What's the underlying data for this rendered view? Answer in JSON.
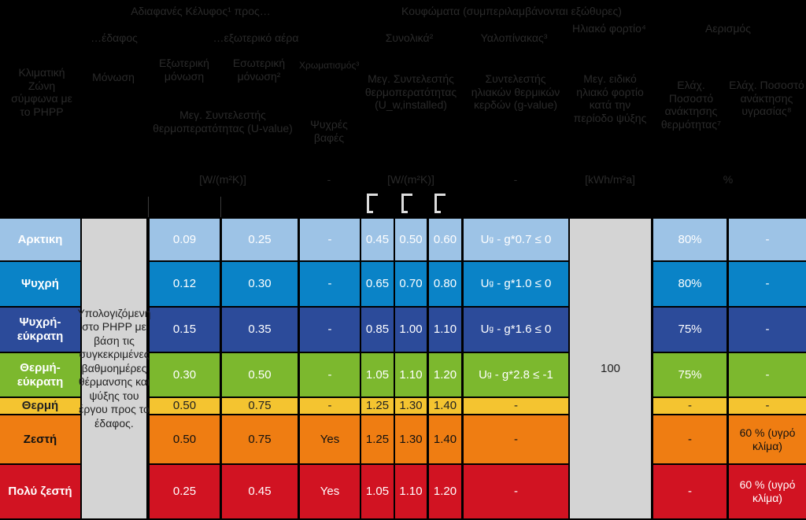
{
  "header": {
    "top_left": "Αδιαφανές Κέλυφος¹ προς…",
    "top_right": "Κουφώματα (συμπεριλαμβάνονται εξώθυρες)",
    "sub_ground": "…έδαφος",
    "sub_outside": "…εξωτερικό αέρα",
    "sub_total": "Συνολικά²",
    "sub_glazing": "Υαλοπίνακας³",
    "sub_solar": "Ηλιακό φορτίο⁴",
    "sub_vent": "Αερισμός",
    "zone_col": "Κλιματική Ζώνη σύμφωνα με το PHPP",
    "insulation": "Μόνωση",
    "ext_ins": "Εξωτερική μόνωση",
    "int_ins": "Εσωτερική μόνωση²",
    "paint": "Χρωματισμός³",
    "umax": "Μεγ. Συντελεστής θερμοπερατότητας (U-value)",
    "cool_colors": "Ψυχρές βαφές",
    "umax_w": "Μεγ. Συντελεστής θερμοπερατότητας (U_w,installed)",
    "glass_coef": "Συντελεστής ηλιακών θερμικών κερδών (g-value)",
    "solar_max": "Μεγ. ειδικό ηλιακό φορτίο κατά την περίοδο ψύξης",
    "heat_rec": "Ελάχ. Ποσοστό ανάκτησης θερμότητας⁷",
    "hum_rec": "Ελάχ. Ποσοστό ανάκτησης υγρασίας⁸",
    "unit_u": "[W/(m²K)]",
    "unit_dash": "-",
    "unit_uw": "[W/(m²K)]",
    "unit_dash2": "-",
    "unit_solar": "[kWh/m²a]",
    "unit_pct": "%"
  },
  "ground_text": "Υπολογιζόμενη στο PHPP με βάση τις συγκεκριμένες βαθμοημέρες θέρμανσης και ψύξης του έργου προς το έδαφος.",
  "solar_value": "100",
  "rows": [
    {
      "zone": "Αρκτικη",
      "ext": "0.09",
      "int": "0.25",
      "paint": "-",
      "w1": "0.45",
      "w2": "0.50",
      "w3": "0.60",
      "g": "U",
      "gsub": "g",
      "gtail": " - g*0.7 ≤ 0",
      "heat": "80%",
      "hum": "-"
    },
    {
      "zone": "Ψυχρή",
      "ext": "0.12",
      "int": "0.30",
      "paint": "-",
      "w1": "0.65",
      "w2": "0.70",
      "w3": "0.80",
      "g": "U",
      "gsub": "g",
      "gtail": " - g*1.0 ≤ 0",
      "heat": "80%",
      "hum": "-"
    },
    {
      "zone": "Ψυχρή-εύκρατη",
      "ext": "0.15",
      "int": "0.35",
      "paint": "-",
      "w1": "0.85",
      "w2": "1.00",
      "w3": "1.10",
      "g": "U",
      "gsub": "g",
      "gtail": " - g*1.6 ≤ 0",
      "heat": "75%",
      "hum": "-"
    },
    {
      "zone": "Θερμή-εύκρατη",
      "ext": "0.30",
      "int": "0.50",
      "paint": "-",
      "w1": "1.05",
      "w2": "1.10",
      "w3": "1.20",
      "g": "U",
      "gsub": "g",
      "gtail": " - g*2.8 ≤ -1",
      "heat": "75%",
      "hum": "-"
    },
    {
      "zone": "Θερμή",
      "ext": "0.50",
      "int": "0.75",
      "paint": "-",
      "w1": "1.25",
      "w2": "1.30",
      "w3": "1.40",
      "g": "-",
      "gsub": "",
      "gtail": "",
      "heat": "-",
      "hum": "-"
    },
    {
      "zone": "Ζεστή",
      "ext": "0.50",
      "int": "0.75",
      "paint": "Yes",
      "w1": "1.25",
      "w2": "1.30",
      "w3": "1.40",
      "g": "-",
      "gsub": "",
      "gtail": "",
      "heat": "-",
      "hum": "60 % (υγρό κλίμα)"
    },
    {
      "zone": "Πολύ ζεστή",
      "ext": "0.25",
      "int": "0.45",
      "paint": "Yes",
      "w1": "1.05",
      "w2": "1.10",
      "w3": "1.20",
      "g": "-",
      "gsub": "",
      "gtail": "",
      "heat": "-",
      "hum": "60 % (υγρό κλίμα)"
    }
  ]
}
